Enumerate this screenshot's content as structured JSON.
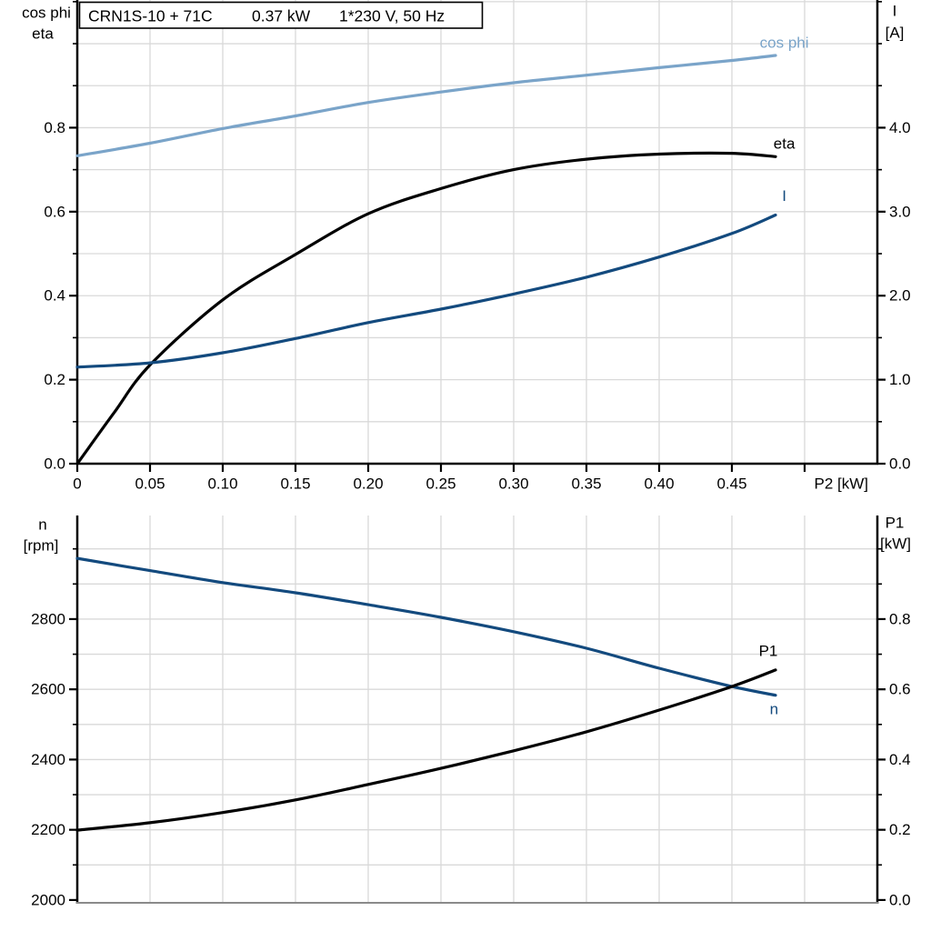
{
  "title_box": {
    "segments": [
      "CRN1S-10 + 71C",
      "0.37 kW",
      "1*230 V, 50 Hz"
    ]
  },
  "colors": {
    "background": "#ffffff",
    "grid": "#d9d9d9",
    "axis": "#000000",
    "bottom_baseline_gray": "#8a8a8a",
    "curve_light_blue": "#7aa4c9",
    "curve_dark_blue": "#134a7e",
    "curve_black": "#000000"
  },
  "chart_data": [
    {
      "type": "line",
      "id": "upper-motor-curves",
      "title": "CRN1S-10 + 71C 0.37 kW 1*230 V, 50 Hz",
      "x_axis": {
        "label": "P2 [kW]",
        "min": 0,
        "max": 0.55,
        "grid_step": 0.05,
        "ticks": [
          {
            "v": 0,
            "t": "0"
          },
          {
            "v": 0.05,
            "t": "0.05"
          },
          {
            "v": 0.1,
            "t": "0.10"
          },
          {
            "v": 0.15,
            "t": "0.15"
          },
          {
            "v": 0.2,
            "t": "0.20"
          },
          {
            "v": 0.25,
            "t": "0.25"
          },
          {
            "v": 0.3,
            "t": "0.30"
          },
          {
            "v": 0.35,
            "t": "0.35"
          },
          {
            "v": 0.4,
            "t": "0.40"
          },
          {
            "v": 0.45,
            "t": "0.45"
          },
          {
            "v": 0.5,
            "t": ""
          }
        ]
      },
      "y_left": {
        "label_lines": [
          "cos phi",
          "eta"
        ],
        "min": 0,
        "max": 1.104,
        "grid_step": 0.1,
        "ticks": [
          {
            "v": 0.0,
            "t": "0.0"
          },
          {
            "v": 0.2,
            "t": "0.2"
          },
          {
            "v": 0.4,
            "t": "0.4"
          },
          {
            "v": 0.6,
            "t": "0.6"
          },
          {
            "v": 0.8,
            "t": "0.8"
          }
        ]
      },
      "y_right": {
        "label_lines": [
          "I",
          "[A]"
        ],
        "min": 0,
        "max": 5.52,
        "grid_step": 0.5,
        "ticks": [
          {
            "v": 0.0,
            "t": "0.0"
          },
          {
            "v": 1.0,
            "t": "1.0"
          },
          {
            "v": 2.0,
            "t": "2.0"
          },
          {
            "v": 3.0,
            "t": "3.0"
          },
          {
            "v": 4.0,
            "t": "4.0"
          }
        ]
      },
      "series": [
        {
          "name": "cos phi",
          "axis": "left",
          "color_key": "curve_light_blue",
          "x": [
            0,
            0.05,
            0.1,
            0.15,
            0.2,
            0.25,
            0.3,
            0.35,
            0.4,
            0.45,
            0.48
          ],
          "y": [
            0.733,
            0.763,
            0.798,
            0.828,
            0.86,
            0.885,
            0.907,
            0.925,
            0.943,
            0.96,
            0.972
          ],
          "label": {
            "x": 0.486,
            "y": 1.002
          }
        },
        {
          "name": "eta",
          "axis": "left",
          "color_key": "curve_black",
          "x": [
            0,
            0.025,
            0.05,
            0.1,
            0.15,
            0.2,
            0.25,
            0.3,
            0.35,
            0.4,
            0.45,
            0.48
          ],
          "y": [
            0,
            0.12,
            0.235,
            0.39,
            0.498,
            0.595,
            0.655,
            0.7,
            0.725,
            0.737,
            0.739,
            0.731
          ],
          "label": {
            "x": 0.486,
            "y": 0.762
          }
        },
        {
          "name": "I",
          "axis": "right",
          "color_key": "curve_dark_blue",
          "x": [
            0,
            0.05,
            0.1,
            0.15,
            0.2,
            0.25,
            0.3,
            0.35,
            0.4,
            0.45,
            0.48
          ],
          "y": [
            1.15,
            1.2,
            1.32,
            1.49,
            1.68,
            1.84,
            2.02,
            2.22,
            2.46,
            2.74,
            2.96
          ],
          "label": {
            "x": 0.486,
            "y": 3.19
          }
        }
      ]
    },
    {
      "type": "line",
      "id": "lower-motor-curves",
      "title": "",
      "x_axis": {
        "label": "",
        "min": 0,
        "max": 0.55,
        "grid_step": 0.05,
        "ticks": []
      },
      "y_left": {
        "label_lines": [
          "n",
          "[rpm]"
        ],
        "min": 1992,
        "max": 3095,
        "grid_step": 100,
        "ticks": [
          {
            "v": 2000,
            "t": "2000"
          },
          {
            "v": 2200,
            "t": "2200"
          },
          {
            "v": 2400,
            "t": "2400"
          },
          {
            "v": 2600,
            "t": "2600"
          },
          {
            "v": 2800,
            "t": "2800"
          }
        ]
      },
      "y_right": {
        "label_lines": [
          "P1",
          "[kW]"
        ],
        "min": -0.008,
        "max": 1.095,
        "grid_step": 0.1,
        "ticks": [
          {
            "v": 0.0,
            "t": "0.0"
          },
          {
            "v": 0.2,
            "t": "0.2"
          },
          {
            "v": 0.4,
            "t": "0.4"
          },
          {
            "v": 0.6,
            "t": "0.6"
          },
          {
            "v": 0.8,
            "t": "0.8"
          }
        ]
      },
      "series": [
        {
          "name": "n",
          "axis": "left",
          "color_key": "curve_dark_blue",
          "x": [
            0,
            0.05,
            0.1,
            0.15,
            0.2,
            0.25,
            0.3,
            0.35,
            0.4,
            0.45,
            0.48
          ],
          "y": [
            2973,
            2938,
            2904,
            2875,
            2841,
            2805,
            2764,
            2717,
            2660,
            2608,
            2583
          ],
          "label": {
            "x": 0.479,
            "y": 2543
          }
        },
        {
          "name": "P1",
          "axis": "right",
          "color_key": "curve_black",
          "x": [
            0,
            0.05,
            0.1,
            0.15,
            0.2,
            0.25,
            0.3,
            0.35,
            0.4,
            0.45,
            0.48
          ],
          "y": [
            0.199,
            0.22,
            0.249,
            0.285,
            0.329,
            0.375,
            0.425,
            0.479,
            0.541,
            0.608,
            0.655
          ],
          "label": {
            "x": 0.475,
            "y": 0.709
          }
        }
      ]
    }
  ]
}
